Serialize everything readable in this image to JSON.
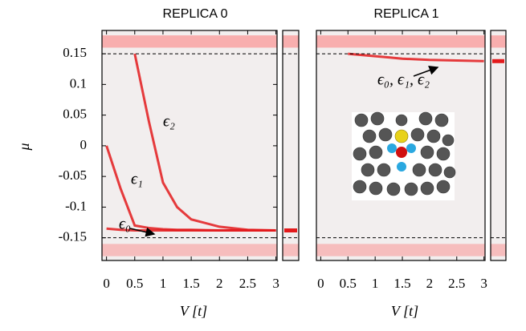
{
  "chart_data": [
    {
      "type": "line",
      "title": "REPLICA 0",
      "y_label": "μ",
      "x_label": "V [t]",
      "x": [
        0,
        0.25,
        0.5,
        0.75,
        1,
        1.25,
        1.5,
        2,
        2.5,
        3
      ],
      "series": [
        {
          "color": "#e31a1c",
          "values": [
            null,
            null,
            0.15,
            0.04,
            -0.06,
            -0.1,
            -0.12,
            -0.132,
            -0.137,
            -0.138
          ]
        },
        {
          "color": "#e31a1c",
          "values": [
            0,
            -0.07,
            -0.13,
            -0.134,
            -0.136,
            -0.137,
            -0.137,
            -0.138,
            -0.138,
            -0.138
          ]
        },
        {
          "color": "#e31a1c",
          "values": [
            -0.135,
            -0.137,
            -0.138,
            -0.138,
            -0.138,
            -0.138,
            -0.138,
            -0.138,
            -0.138,
            -0.138
          ]
        }
      ],
      "side_values": [
        -0.138
      ],
      "hlines": [
        0.15,
        -0.15
      ],
      "annotations": [
        "ϵ₂",
        "ϵ₁",
        "ϵ₀"
      ],
      "xlim": [
        -0.08,
        3.02
      ],
      "xticks": [
        0,
        0.5,
        1,
        1.5,
        2,
        2.5,
        3
      ],
      "ylim": [
        -0.187,
        0.188
      ],
      "yticks": [
        0.15,
        0.1,
        0.05,
        0,
        -0.05,
        -0.1,
        -0.15
      ]
    },
    {
      "type": "line",
      "title": "REPLICA 1",
      "x_label": "V [t]",
      "x": [
        0,
        0.25,
        0.5,
        0.75,
        1,
        1.25,
        1.5,
        2,
        2.5,
        3
      ],
      "series": [
        {
          "color": "#e31a1c",
          "values": [
            null,
            null,
            0.15,
            0.148,
            0.146,
            0.144,
            0.142,
            0.14,
            0.139,
            0.138
          ]
        }
      ],
      "side_values": [
        0.138
      ],
      "hlines": [
        0.15,
        -0.15
      ],
      "annotations": [
        "ϵ₀, ϵ₁, ϵ₂"
      ],
      "xlim": [
        -0.08,
        3.02
      ],
      "xticks": [
        0,
        0.5,
        1,
        1.5,
        2,
        2.5,
        3
      ],
      "ylim": [
        -0.187,
        0.188
      ]
    }
  ]
}
